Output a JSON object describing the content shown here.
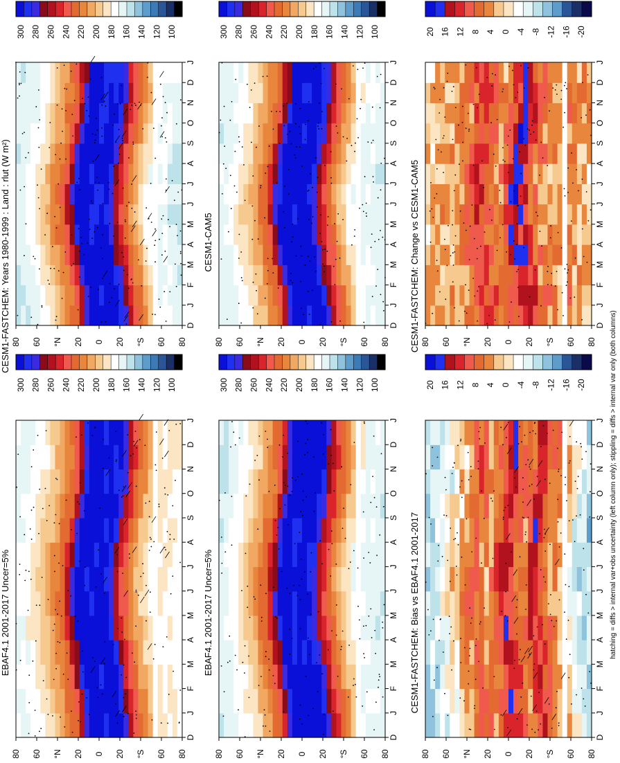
{
  "figure_note": "hatching = diffs > internal var+obs uncertainty (left column only); stippling = diffs > internal var only (both columns)",
  "colors": {
    "abs_scale": [
      "#000000",
      "#1a2f66",
      "#2a5597",
      "#3d7ab8",
      "#5e9ccc",
      "#8fc2dc",
      "#bde2ea",
      "#e6f5f6",
      "#ffffff",
      "#fbe5c3",
      "#f6c98f",
      "#f0a862",
      "#e9863d",
      "#e36a30",
      "#f05a4d",
      "#d8242a",
      "#b2121d",
      "#8a0b1a",
      "#3a2be0",
      "#2030f0",
      "#0a10d8"
    ],
    "diff_scale": [
      "#0a0a4a",
      "#1a2f66",
      "#2a5597",
      "#5e9ccc",
      "#8fc2dc",
      "#bde2ea",
      "#e6f5f6",
      "#ffffff",
      "#fbe5c3",
      "#f6c98f",
      "#e9863d",
      "#e36a30",
      "#f05a4d",
      "#d8242a",
      "#b2121d",
      "#2030f0",
      "#0a10d8"
    ]
  },
  "chart_data": [
    {
      "id": "panel-model-1",
      "type": "heatmap",
      "title": "CESM1-FASTCHEM: Years 1980-1999 : Land : rlut (W m²)",
      "x_ticks": [
        "D",
        "J",
        "F",
        "M",
        "A",
        "M",
        "J",
        "J",
        "A",
        "S",
        "O",
        "N",
        "D",
        "J"
      ],
      "y_ticks": [
        "80",
        "60",
        "°N",
        "20",
        "0",
        "20",
        "°S",
        "60",
        "80"
      ],
      "colorbar_ticks": [
        "300",
        "280",
        "260",
        "240",
        "220",
        "200",
        "180",
        "160",
        "140",
        "120",
        "100"
      ],
      "vmin": 100,
      "vmax": 310,
      "scale": "abs",
      "lat_nodes": [
        -85,
        -75,
        -60,
        -50,
        -40,
        -30,
        -25,
        -20,
        -15,
        -8,
        0,
        8,
        15,
        20,
        25,
        30,
        40,
        50,
        60,
        70,
        85
      ],
      "lat_values": [
        170,
        180,
        180,
        200,
        225,
        250,
        265,
        285,
        300,
        305,
        300,
        305,
        305,
        285,
        265,
        240,
        225,
        205,
        190,
        180,
        170
      ],
      "seasonal_shift_deg": 8,
      "land_gap_lat": -60,
      "hatching": true,
      "stippling": true
    },
    {
      "id": "panel-obs",
      "type": "heatmap",
      "title": "EBAF4.1 2001-2017 Uncer=5%",
      "x_ticks": [
        "D",
        "J",
        "F",
        "M",
        "A",
        "M",
        "J",
        "J",
        "A",
        "S",
        "O",
        "N",
        "D",
        "J"
      ],
      "y_ticks": [
        "80",
        "60",
        "°N",
        "20",
        "0",
        "20",
        "°S",
        "60",
        "80"
      ],
      "colorbar_ticks": [
        "300",
        "280",
        "260",
        "240",
        "220",
        "200",
        "180",
        "160",
        "140",
        "120",
        "100"
      ],
      "vmin": 100,
      "vmax": 310,
      "scale": "abs",
      "lat_nodes": [
        -85,
        -75,
        -60,
        -50,
        -40,
        -30,
        -25,
        -20,
        -15,
        -8,
        0,
        8,
        15,
        20,
        25,
        30,
        40,
        50,
        60,
        70,
        85
      ],
      "lat_values": [
        185,
        190,
        190,
        205,
        228,
        250,
        268,
        288,
        302,
        305,
        300,
        306,
        305,
        288,
        268,
        242,
        225,
        208,
        195,
        185,
        180
      ],
      "seasonal_shift_deg": 8,
      "land_gap_lat": -60,
      "hatching": true,
      "stippling": true
    },
    {
      "id": "panel-bias",
      "type": "heatmap",
      "title": "CESM1-FASTCHEM: Bias vs EBAF4.1 2001-2017",
      "x_ticks": [
        "D",
        "J",
        "F",
        "M",
        "A",
        "M",
        "J",
        "J",
        "A",
        "S",
        "O",
        "N",
        "D",
        "J"
      ],
      "y_ticks": [
        "80",
        "60",
        "°N",
        "20",
        "0",
        "20",
        "°S",
        "60",
        "80"
      ],
      "colorbar_ticks": [
        "20",
        "16",
        "12",
        "8",
        "4",
        "0",
        "-4",
        "-8",
        "-12",
        "-16",
        "-20"
      ],
      "vmin": -22,
      "vmax": 22,
      "scale": "diff",
      "lat_nodes": [
        -85,
        -75,
        -60,
        -50,
        -40,
        -30,
        -20,
        -10,
        0,
        10,
        20,
        30,
        45,
        60,
        75,
        85
      ],
      "lat_values": [
        -8,
        -6,
        2,
        6,
        8,
        14,
        6,
        10,
        16,
        8,
        4,
        10,
        4,
        -2,
        -6,
        -8
      ],
      "seasonal_shift_deg": 6,
      "land_gap_lat": -60,
      "hatching": true,
      "stippling": true
    },
    {
      "id": "panel-model-2",
      "type": "heatmap",
      "title": "CESM1-CAM5",
      "x_ticks": [
        "D",
        "J",
        "F",
        "M",
        "A",
        "M",
        "J",
        "J",
        "A",
        "S",
        "O",
        "N",
        "D",
        "J"
      ],
      "y_ticks": [
        "80",
        "60",
        "°N",
        "20",
        "0",
        "20",
        "°S",
        "60",
        "80"
      ],
      "colorbar_ticks": [
        "300",
        "280",
        "260",
        "240",
        "220",
        "200",
        "180",
        "160",
        "140",
        "120",
        "100"
      ],
      "vmin": 100,
      "vmax": 310,
      "scale": "abs",
      "lat_nodes": [
        -85,
        -75,
        -60,
        -50,
        -40,
        -30,
        -25,
        -20,
        -15,
        -8,
        0,
        8,
        15,
        20,
        25,
        30,
        40,
        50,
        60,
        70,
        85
      ],
      "lat_values": [
        172,
        178,
        180,
        202,
        226,
        252,
        266,
        286,
        302,
        306,
        300,
        306,
        305,
        286,
        266,
        240,
        224,
        206,
        192,
        182,
        172
      ],
      "seasonal_shift_deg": 8,
      "land_gap_lat": -60,
      "hatching": false,
      "stippling": true
    },
    {
      "id": "panel-change",
      "type": "heatmap",
      "title": "CESM1-FASTCHEM: Change vs CESM1-CAM5",
      "x_ticks": [
        "D",
        "J",
        "F",
        "M",
        "A",
        "M",
        "J",
        "J",
        "A",
        "S",
        "O",
        "N",
        "D",
        "J"
      ],
      "y_ticks": [
        "80",
        "60",
        "°N",
        "20",
        "0",
        "20",
        "°S",
        "60",
        "80"
      ],
      "colorbar_ticks": [
        "20",
        "16",
        "12",
        "8",
        "4",
        "0",
        "-4",
        "-8",
        "-12",
        "-16",
        "-20"
      ],
      "vmin": -22,
      "vmax": 22,
      "scale": "diff",
      "lat_nodes": [
        -85,
        -75,
        -60,
        -50,
        -40,
        -30,
        -20,
        -10,
        0,
        10,
        20,
        30,
        45,
        60,
        75,
        85
      ],
      "lat_values": [
        2,
        4,
        6,
        4,
        6,
        8,
        14,
        18,
        8,
        4,
        10,
        12,
        6,
        4,
        2,
        2
      ],
      "seasonal_shift_deg": 6,
      "land_gap_lat": -60,
      "hatching": false,
      "stippling": true
    }
  ]
}
